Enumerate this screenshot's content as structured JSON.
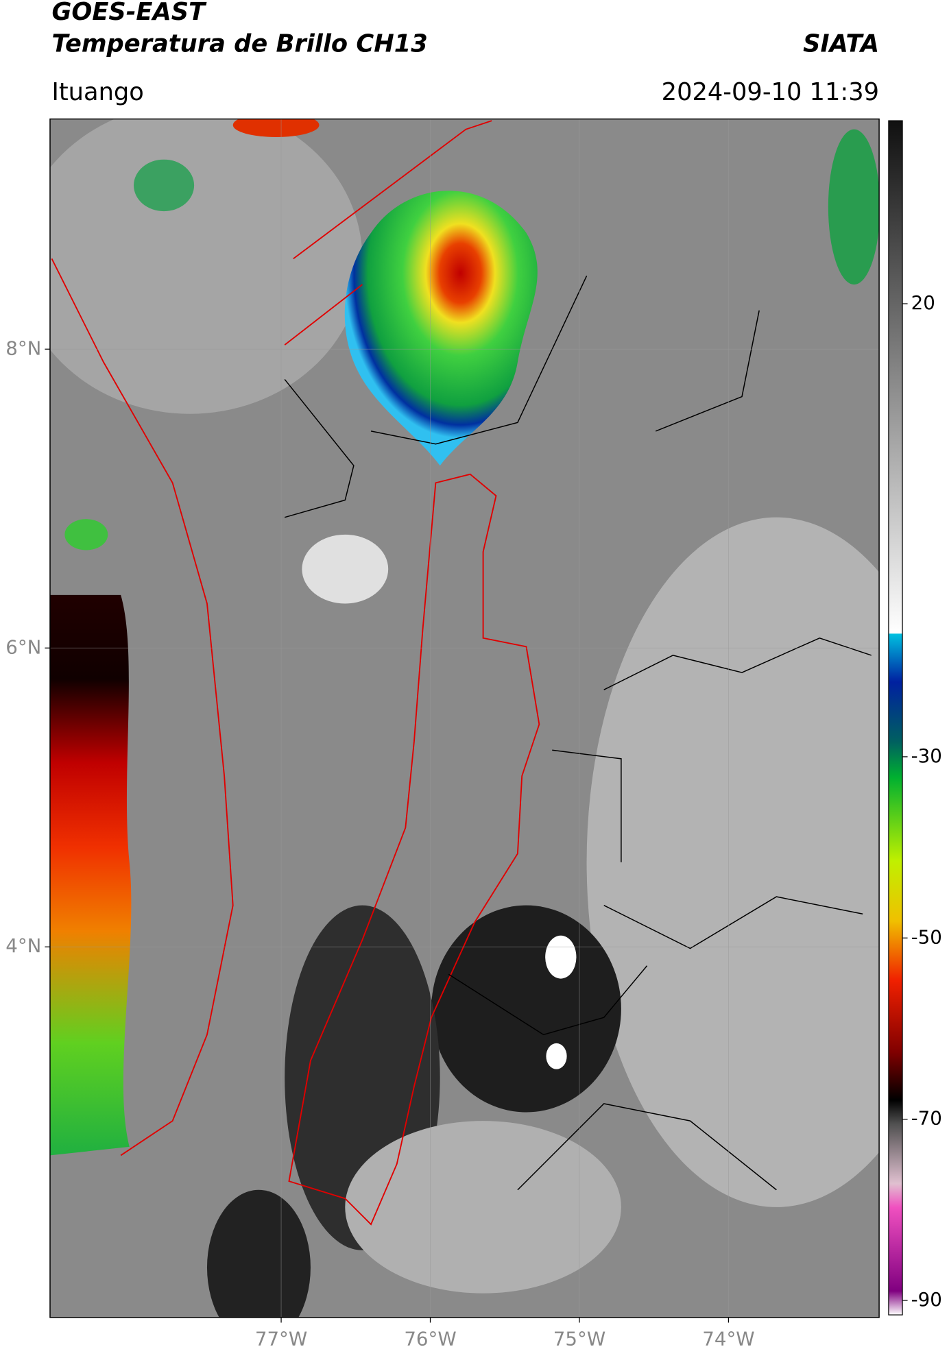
{
  "header": {
    "title": "GOES-EAST",
    "subtitle": "Temperatura de Brillo CH13",
    "source": "SIATA",
    "location": "Ituango",
    "datetime": "2024-09-10 11:39"
  },
  "map": {
    "lon_lim": [
      -78.55,
      -72.99
    ],
    "lat_lim": [
      1.52,
      9.54
    ],
    "lon_ticks": [
      {
        "value": -77,
        "label": "77°W"
      },
      {
        "value": -76,
        "label": "76°W"
      },
      {
        "value": -75,
        "label": "75°W"
      },
      {
        "value": -74,
        "label": "74°W"
      }
    ],
    "lat_ticks": [
      {
        "value": 8,
        "label": "8°N"
      },
      {
        "value": 6,
        "label": "6°N"
      },
      {
        "value": 4,
        "label": "4°N"
      }
    ],
    "grid": true
  },
  "colorbar": {
    "lim": [
      -91.6,
      40.2
    ],
    "ticks": [
      20,
      -30,
      -50,
      -70,
      -90
    ]
  }
}
